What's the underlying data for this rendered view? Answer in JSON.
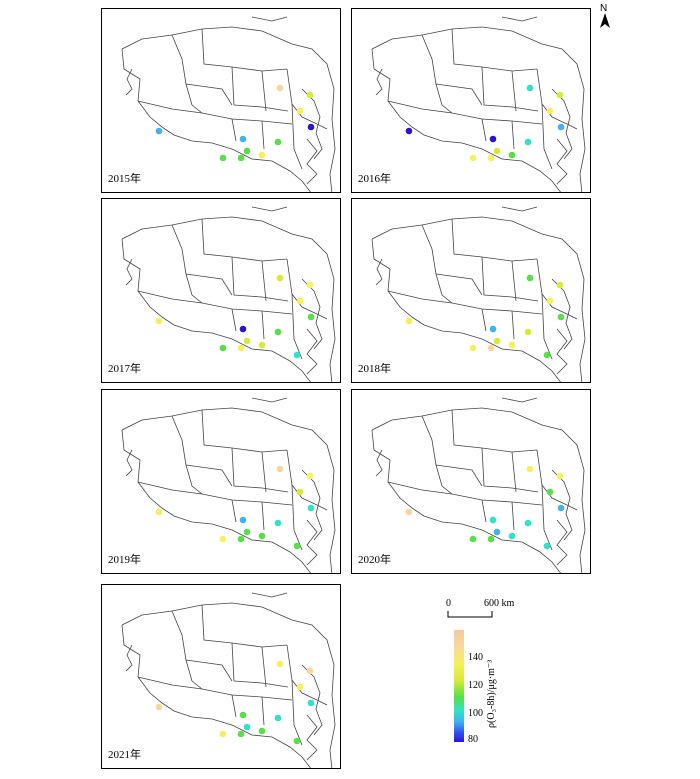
{
  "panels": [
    {
      "year": "2015年",
      "points": [
        {
          "site": "west",
          "value": 105
        },
        {
          "site": "north_c",
          "value": 145
        },
        {
          "site": "ne1",
          "value": 138
        },
        {
          "site": "ne2",
          "value": 140
        },
        {
          "site": "ne3",
          "value": 82
        },
        {
          "site": "c_blue",
          "value": 104
        },
        {
          "site": "c1",
          "value": 122
        },
        {
          "site": "c2",
          "value": 120
        },
        {
          "site": "c3",
          "value": 140
        },
        {
          "site": "c4",
          "value": 125
        },
        {
          "site": "c5",
          "value": 122
        }
      ]
    },
    {
      "year": "2016年",
      "points": [
        {
          "site": "west",
          "value": 84
        },
        {
          "site": "north_c",
          "value": 115
        },
        {
          "site": "ne1",
          "value": 138
        },
        {
          "site": "ne2",
          "value": 140
        },
        {
          "site": "ne3",
          "value": 105
        },
        {
          "site": "c_blue",
          "value": 86
        },
        {
          "site": "c1",
          "value": 140
        },
        {
          "site": "c2",
          "value": 143
        },
        {
          "site": "c3",
          "value": 120
        },
        {
          "site": "c4",
          "value": 112
        },
        {
          "site": "c5",
          "value": 138
        }
      ]
    },
    {
      "year": "2017年",
      "points": [
        {
          "site": "west",
          "value": 140
        },
        {
          "site": "north_c",
          "value": 138
        },
        {
          "site": "ne1",
          "value": 140
        },
        {
          "site": "ne2",
          "value": 140
        },
        {
          "site": "ne3",
          "value": 120
        },
        {
          "site": "c_blue",
          "value": 84
        },
        {
          "site": "c1",
          "value": 125
        },
        {
          "site": "c2",
          "value": 140
        },
        {
          "site": "c3",
          "value": 138
        },
        {
          "site": "c4",
          "value": 120
        },
        {
          "site": "c5",
          "value": 138
        },
        {
          "site": "se",
          "value": 112
        }
      ]
    },
    {
      "year": "2018年",
      "points": [
        {
          "site": "west",
          "value": 140
        },
        {
          "site": "north_c",
          "value": 120
        },
        {
          "site": "ne1",
          "value": 138
        },
        {
          "site": "ne2",
          "value": 140
        },
        {
          "site": "ne3",
          "value": 120
        },
        {
          "site": "c_blue",
          "value": 100
        },
        {
          "site": "c1",
          "value": 140
        },
        {
          "site": "c2",
          "value": 145
        },
        {
          "site": "c3",
          "value": 140
        },
        {
          "site": "c4",
          "value": 138
        },
        {
          "site": "c5",
          "value": 138
        },
        {
          "site": "se",
          "value": 125
        }
      ]
    },
    {
      "year": "2019年",
      "points": [
        {
          "site": "west",
          "value": 140
        },
        {
          "site": "north_c",
          "value": 145
        },
        {
          "site": "ne1",
          "value": 140
        },
        {
          "site": "ne2",
          "value": 138
        },
        {
          "site": "ne3",
          "value": 110
        },
        {
          "site": "c_blue",
          "value": 102
        },
        {
          "site": "c1",
          "value": 140
        },
        {
          "site": "c2",
          "value": 125
        },
        {
          "site": "c3",
          "value": 120
        },
        {
          "site": "c4",
          "value": 112
        },
        {
          "site": "c5",
          "value": 125
        },
        {
          "site": "se",
          "value": 122
        }
      ]
    },
    {
      "year": "2020年",
      "points": [
        {
          "site": "west",
          "value": 146
        },
        {
          "site": "north_c",
          "value": 140
        },
        {
          "site": "ne1",
          "value": 140
        },
        {
          "site": "ne2",
          "value": 122
        },
        {
          "site": "ne3",
          "value": 105
        },
        {
          "site": "c_blue",
          "value": 110
        },
        {
          "site": "c1",
          "value": 125
        },
        {
          "site": "c2",
          "value": 122
        },
        {
          "site": "c3",
          "value": 112
        },
        {
          "site": "c4",
          "value": 110
        },
        {
          "site": "c5",
          "value": 108
        },
        {
          "site": "se",
          "value": 110
        }
      ]
    },
    {
      "year": "2021年",
      "points": [
        {
          "site": "west",
          "value": 146
        },
        {
          "site": "north_c",
          "value": 140
        },
        {
          "site": "ne1",
          "value": 145
        },
        {
          "site": "ne2",
          "value": 140
        },
        {
          "site": "ne3",
          "value": 110
        },
        {
          "site": "c_blue",
          "value": 125
        },
        {
          "site": "c1",
          "value": 140
        },
        {
          "site": "c2",
          "value": 125
        },
        {
          "site": "c3",
          "value": 122
        },
        {
          "site": "c4",
          "value": 112
        },
        {
          "site": "c5",
          "value": 110
        },
        {
          "site": "se",
          "value": 122
        }
      ]
    }
  ],
  "north_arrow": {
    "label": "N"
  },
  "scale_bar": {
    "start": "0",
    "end": "600 km"
  },
  "legend": {
    "title": "ρ(O₃-8h)/μg·m⁻³",
    "ticks": [
      "140",
      "120",
      "100",
      "80"
    ],
    "min": 80,
    "max": 150,
    "color_stops": [
      "#2e10d6",
      "#2c4ff0",
      "#3fb2f1",
      "#2fe2c8",
      "#55e046",
      "#d8ea35",
      "#f6f05a",
      "#f8d79e",
      "#f6c99f"
    ]
  }
}
